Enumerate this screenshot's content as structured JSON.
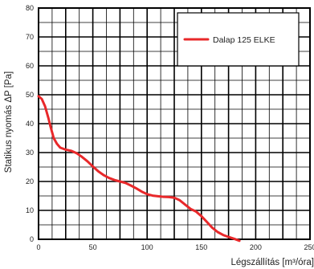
{
  "chart_data": {
    "type": "line",
    "title": "",
    "xlabel": "Légszállítás [m³/óra]",
    "ylabel": "Statikus nyomás ΔP [Pa]",
    "xlim": [
      0,
      250
    ],
    "ylim": [
      0,
      80
    ],
    "x_ticks": [
      0,
      50,
      100,
      150,
      200,
      250
    ],
    "y_ticks": [
      0,
      10,
      20,
      30,
      40,
      50,
      60,
      70,
      80
    ],
    "grid": true,
    "legend_position": "top-right",
    "series": [
      {
        "name": "Dalap 125 ELKE",
        "color": "#e8282a",
        "points": [
          [
            0,
            49.5
          ],
          [
            3,
            48.5
          ],
          [
            6,
            46
          ],
          [
            9,
            42
          ],
          [
            11,
            39
          ],
          [
            14,
            35
          ],
          [
            17,
            33
          ],
          [
            20,
            31.7
          ],
          [
            25,
            31
          ],
          [
            30,
            30.6
          ],
          [
            35,
            29.8
          ],
          [
            40,
            28.5
          ],
          [
            45,
            27
          ],
          [
            50,
            25.2
          ],
          [
            55,
            23.5
          ],
          [
            60,
            22.2
          ],
          [
            65,
            21.2
          ],
          [
            70,
            20.5
          ],
          [
            75,
            20
          ],
          [
            80,
            19.5
          ],
          [
            85,
            18.6
          ],
          [
            90,
            17.6
          ],
          [
            95,
            16.5
          ],
          [
            100,
            15.6
          ],
          [
            105,
            15.1
          ],
          [
            110,
            14.9
          ],
          [
            115,
            14.7
          ],
          [
            120,
            14.6
          ],
          [
            125,
            14.4
          ],
          [
            130,
            13.5
          ],
          [
            135,
            12
          ],
          [
            140,
            10.5
          ],
          [
            145,
            9.6
          ],
          [
            150,
            8
          ],
          [
            155,
            6
          ],
          [
            160,
            4
          ],
          [
            165,
            2.5
          ],
          [
            170,
            1.5
          ],
          [
            175,
            0.8
          ],
          [
            180,
            0.2
          ],
          [
            185,
            -0.5
          ]
        ]
      }
    ]
  }
}
